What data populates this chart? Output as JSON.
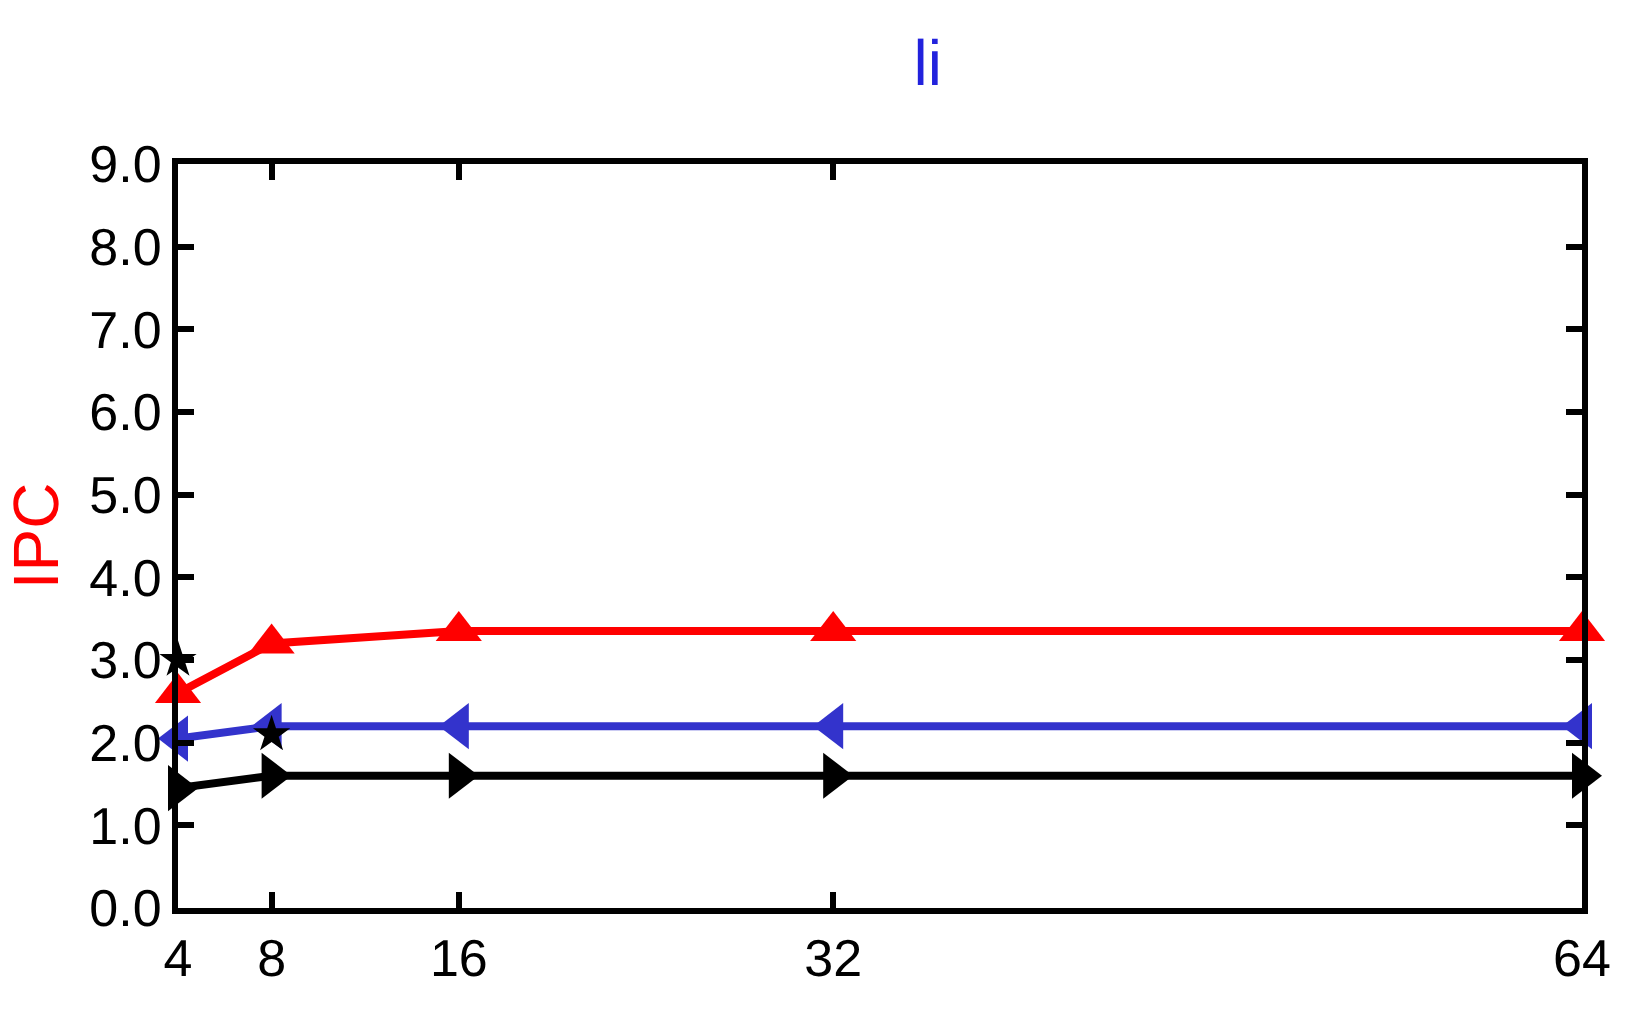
{
  "chart_data": {
    "type": "line",
    "title": "li",
    "ylabel": "IPC",
    "x": [
      4,
      8,
      16,
      32,
      64
    ],
    "xlim": [
      4,
      64
    ],
    "xticks": [
      4,
      8,
      16,
      32,
      64
    ],
    "ylim": [
      0,
      9
    ],
    "yticks": [
      {
        "value": 0,
        "label": "0.0"
      },
      {
        "value": 1,
        "label": "1.0"
      },
      {
        "value": 2,
        "label": "2.0"
      },
      {
        "value": 3,
        "label": "3.0"
      },
      {
        "value": 4,
        "label": "4.0"
      },
      {
        "value": 5,
        "label": "5.0"
      },
      {
        "value": 6,
        "label": "6.0"
      },
      {
        "value": 7,
        "label": "7.0"
      },
      {
        "value": 8,
        "label": "8.0"
      },
      {
        "value": 9,
        "label": "9.0"
      }
    ],
    "series": [
      {
        "color": "#ff0000",
        "marker": "triangle-up",
        "values": [
          2.6,
          3.2,
          3.35,
          3.35,
          3.35
        ]
      },
      {
        "color": "#3333cc",
        "marker": "triangle-left",
        "values": [
          2.05,
          2.2,
          2.2,
          2.2,
          2.2
        ]
      },
      {
        "color": "#000000",
        "marker": "triangle-right",
        "values": [
          1.45,
          1.6,
          1.6,
          1.6,
          1.6
        ]
      },
      {
        "type": "scatter",
        "color": "#000000",
        "marker": "star",
        "values": [
          3.0,
          2.1,
          null,
          null,
          null
        ]
      }
    ]
  }
}
